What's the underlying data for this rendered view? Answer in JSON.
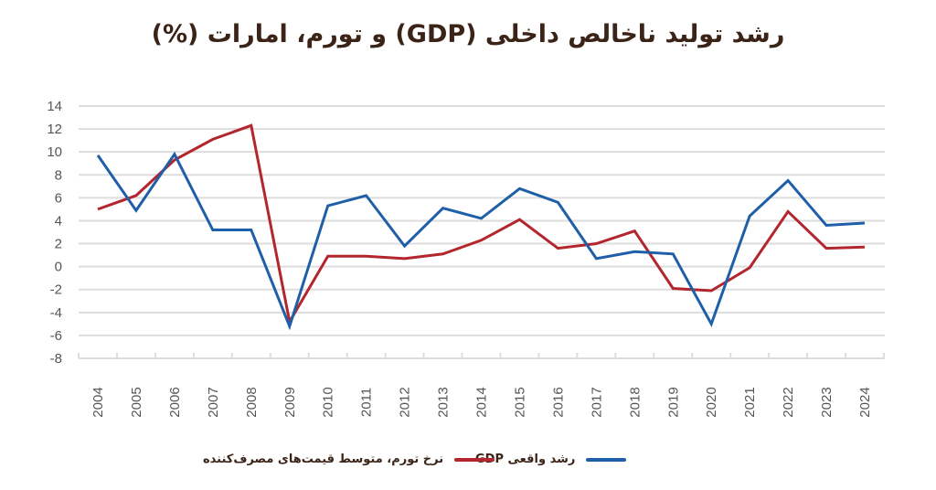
{
  "chart_data": {
    "type": "line",
    "title": "رشد تولید ناخالص داخلی (GDP) و تورم، امارات (%)",
    "xlabel": "",
    "ylabel": "",
    "ylim": [
      -8,
      14
    ],
    "yticks": [
      "14",
      "12",
      "10",
      "8",
      "6",
      "4",
      "2",
      "0",
      "-2",
      "-4",
      "-6",
      "-8"
    ],
    "ytick_values": [
      14,
      12,
      10,
      8,
      6,
      4,
      2,
      0,
      -2,
      -4,
      -6,
      -8
    ],
    "grid": true,
    "legend_position": "bottom",
    "categories": [
      "2004",
      "2005",
      "2006",
      "2007",
      "2008",
      "2009",
      "2010",
      "2011",
      "2012",
      "2013",
      "2014",
      "2015",
      "2016",
      "2017",
      "2018",
      "2019",
      "2020",
      "2021",
      "2022",
      "2023",
      "2024"
    ],
    "series": [
      {
        "name": "رشد واقعی GDP",
        "color": "#1f5fa8",
        "values": [
          9.7,
          4.9,
          9.8,
          3.2,
          3.2,
          -5.2,
          5.3,
          6.2,
          1.8,
          5.1,
          4.2,
          6.8,
          5.6,
          0.7,
          1.3,
          1.1,
          -5.0,
          4.4,
          7.5,
          3.6,
          3.8
        ]
      },
      {
        "name": "نرخ تورم، متوسط قیمت‌های مصرف‌کننده",
        "color": "#b3262e",
        "values": [
          5.0,
          6.2,
          9.3,
          11.1,
          12.3,
          -4.8,
          0.9,
          0.9,
          0.7,
          1.1,
          2.3,
          4.1,
          1.6,
          2.0,
          3.1,
          -1.9,
          -2.1,
          -0.1,
          4.8,
          1.6,
          1.7
        ]
      }
    ]
  },
  "colors": {
    "title": "#3b2417",
    "grid": "#dddddd",
    "tick": "#555555"
  }
}
